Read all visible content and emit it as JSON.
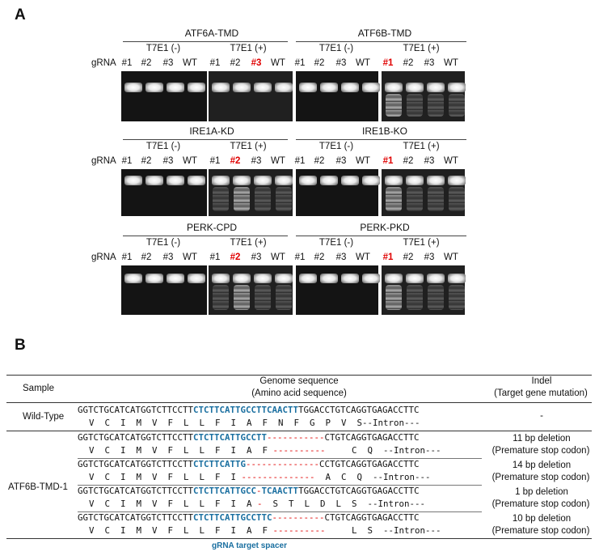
{
  "panelA": {
    "label": "A",
    "grna_label": "gRNA",
    "t7_neg": "T7E1 (-)",
    "t7_pos": "T7E1 (+)",
    "lanes": [
      "#1",
      "#2",
      "#3",
      "WT"
    ],
    "gels": [
      {
        "title": "ATF6A-TMD",
        "selected": "#3"
      },
      {
        "title": "ATF6B-TMD",
        "selected": "#1"
      },
      {
        "title": "IRE1A-KD",
        "selected": "#2"
      },
      {
        "title": "IRE1B-KO",
        "selected": "#1"
      },
      {
        "title": "PERK-CPD",
        "selected": "#2"
      },
      {
        "title": "PERK-PKD",
        "selected": "#1"
      }
    ]
  },
  "panelB": {
    "label": "B",
    "headers": {
      "sample": "Sample",
      "genome": "Genome sequence",
      "genome_sub": "(Amino acid sequence)",
      "indel": "Indel",
      "indel_sub": "(Target gene mutation)"
    },
    "wild_type": {
      "sample": "Wild-Type",
      "seq_pre": "GGTCTGCATCATGGTCTTCCTT",
      "seq_hl": "CTCTTCATTGCCTTCAACTT",
      "seq_post": "TGGACCTGTCAGGTGAGACCTTC",
      "aa": "V  C  I  M  V  F  L  L  F  I  A  F  N  F  G  P  V  S--Intron---",
      "indel": "-"
    },
    "mutant_sample": "ATF6B-TMD-1",
    "mutants": [
      {
        "seq_pre": "GGTCTGCATCATGGTCTTCCTT",
        "seq_hl": "CTCTTCATTGCCTT",
        "seq_del": "-----------",
        "seq_post": "CTGTCAGGTGAGACCTTC",
        "aa_pre": "V  C  I  M  V  F  L  L  F  I  A  F",
        "aa_del": "----------",
        "aa_post": "     C  Q  --Intron---",
        "indel": "11 bp deletion",
        "effect": "(Premature stop codon)"
      },
      {
        "seq_pre": "GGTCTGCATCATGGTCTTCCTT",
        "seq_hl": "CTCTTCATTG",
        "seq_del": "--------------",
        "seq_post": "CCTGTCAGGTGAGACCTTC",
        "aa_pre": "V  C  I  M  V  F  L  L  F  I",
        "aa_del": "--------------",
        "aa_post": "  A  C  Q  --Intron---",
        "indel": "14 bp deletion",
        "effect": "(Premature stop codon)"
      },
      {
        "seq_pre": "GGTCTGCATCATGGTCTTCCTT",
        "seq_hl": "CTCTTCATTGCC",
        "seq_del": "-",
        "seq_hl2": "TCAACTT",
        "seq_post": "TGGACCTGTCAGGTGAGACCTTC",
        "aa_pre": "V  C  I  M  V  F  L  L  F  I  A",
        "aa_del": "-",
        "aa_post": "  S  T  L  D  L  S  --Intron---",
        "indel": "1 bp deletion",
        "effect": "(Premature stop codon)"
      },
      {
        "seq_pre": "GGTCTGCATCATGGTCTTCCTT",
        "seq_hl": "CTCTTCATTGCCTTC",
        "seq_del": "----------",
        "seq_post": "CTGTCAGGTGAGACCTTC",
        "aa_pre": "V  C  I  M  V  F  L  L  F  I  A  F",
        "aa_del": "----------",
        "aa_post": "     L  S  --Intron---",
        "indel": "10 bp deletion",
        "effect": "(Premature stop codon)"
      }
    ],
    "footnote": "gRNA target spacer",
    "highlight_color": "#1a6fa0",
    "deletion_color": "#e00000"
  }
}
